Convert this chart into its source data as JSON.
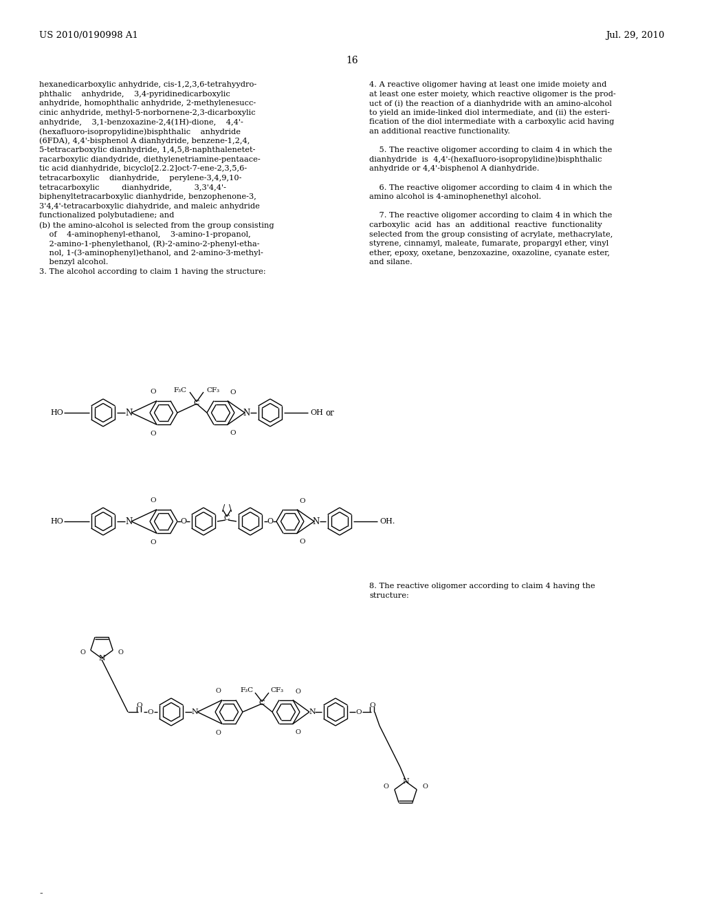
{
  "bg": "#ffffff",
  "header_left": "US 2010/0190998 A1",
  "header_right": "Jul. 29, 2010",
  "page_num": "16",
  "lh": 13.6,
  "fs": 8.2,
  "left_lines": [
    "hexanedicarboxylic anhydride, cis-1,2,3,6-tetrahyydro-",
    "phthalic    anhydride,    3,4-pyridinedicarboxylic",
    "anhydride, homophthalic anhydride, 2-methylenesucc-",
    "cinic anhydride, methyl-5-norbornene-2,3-dicarboxylic",
    "anhydride,    3,1-benzoxazine-2,4(1H)-dione,    4,4'-",
    "(hexafluoro-isopropylidine)bisphthalic    anhydride",
    "(6FDA), 4,4'-bisphenol A dianhydride, benzene-1,2,4,",
    "5-tetracarboxylic dianhydride, 1,4,5,8-naphthalenetet-",
    "racarboxylic diandydride, diethylenetriamine-pentaace-",
    "tic acid dianhydride, bicyclo[2.2.2]oct-7-ene-2,3,5,6-",
    "tetracarboxylic    dianhydride,    perylene-3,4,9,10-",
    "tetracarboxylic         dianhydride,         3,3'4,4'-",
    "biphenyltetracarboxylic dianhydride, benzophenone-3,",
    "3'4,4'-tetracarboxylic diahydride, and maleic anhydride",
    "functionalized polybutadiene; and",
    "(b) the amino-alcohol is selected from the group consisting",
    "    of    4-aminophenyl-ethanol,    3-amino-1-propanol,",
    "    2-amino-1-phenylethanol, (R)-2-amino-2-phenyl-etha-",
    "    nol, 1-(3-aminophenyl)ethanol, and 2-amino-3-methyl-",
    "    benzyl alcohol.",
    "3. The alcohol according to claim 1 having the structure:"
  ],
  "right_lines": [
    "4. A reactive oligomer having at least one imide moiety and",
    "at least one ester moiety, which reactive oligomer is the prod-",
    "uct of (i) the reaction of a dianhydride with an amino-alcohol",
    "to yield an imide-linked diol intermediate, and (ii) the esteri-",
    "fication of the diol intermediate with a carboxylic acid having",
    "an additional reactive functionality.",
    "",
    "    5. The reactive oligomer according to claim 4 in which the",
    "dianhydride  is  4,4'-(hexafluoro-isopropylidine)bisphthalic",
    "anhydride or 4,4'-bisphenol A dianhydride.",
    "",
    "    6. The reactive oligomer according to claim 4 in which the",
    "amino alcohol is 4-aminophenethyl alcohol.",
    "",
    "    7. The reactive oligomer according to claim 4 in which the",
    "carboxylic  acid  has  an  additional  reactive  functionality",
    "selected from the group consisting of acrylate, methacrylate,",
    "styrene, cinnamyl, maleate, fumarate, propargyl ether, vinyl",
    "ether, epoxy, oxetane, benzoxazine, oxazoline, cyanate ester,",
    "and silane."
  ],
  "claim8_lines": [
    "8. The reactive oligomer according to claim 4 having the",
    "structure:"
  ]
}
